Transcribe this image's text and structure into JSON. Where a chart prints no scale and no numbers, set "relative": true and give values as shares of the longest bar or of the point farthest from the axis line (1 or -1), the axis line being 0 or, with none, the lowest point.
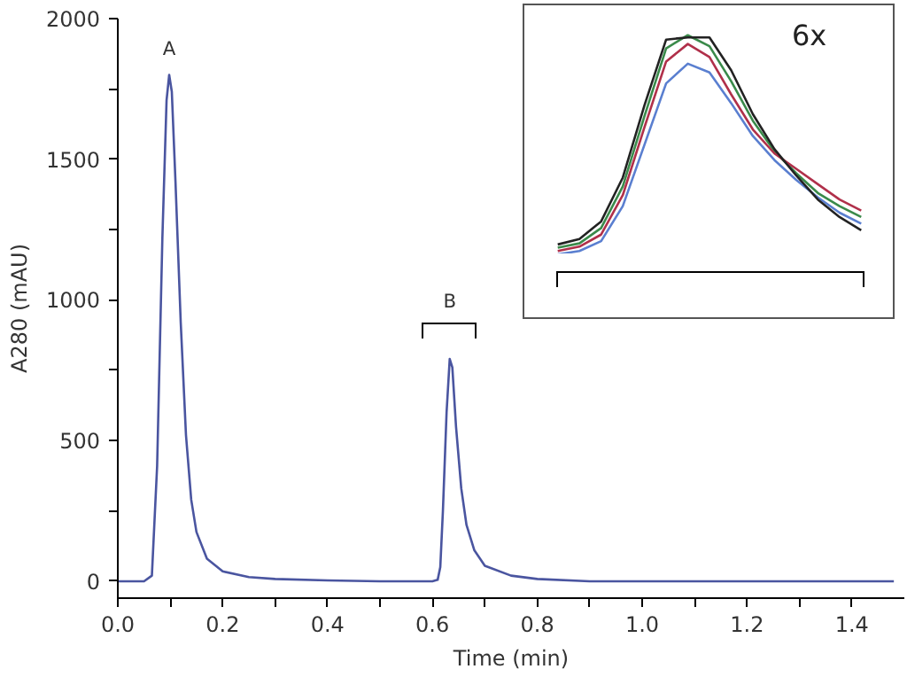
{
  "chart_data": [
    {
      "type": "line",
      "xlabel": "Time (min)",
      "ylabel": "A280 (mAU)",
      "x": [
        0,
        0.05,
        0.065,
        0.075,
        0.085,
        0.093,
        0.098,
        0.103,
        0.11,
        0.12,
        0.13,
        0.14,
        0.15,
        0.17,
        0.2,
        0.25,
        0.3,
        0.4,
        0.5,
        0.6,
        0.61,
        0.615,
        0.62,
        0.627,
        0.633,
        0.638,
        0.645,
        0.655,
        0.665,
        0.68,
        0.7,
        0.75,
        0.8,
        0.9,
        1.48
      ],
      "series": [
        {
          "color": "#4a55a0",
          "values": [
            0,
            0,
            20,
            410,
            1220,
            1710,
            1800,
            1740,
            1420,
            920,
            520,
            290,
            175,
            80,
            35,
            15,
            8,
            3,
            0,
            0,
            5,
            50,
            250,
            600,
            790,
            760,
            550,
            330,
            200,
            110,
            55,
            20,
            8,
            0,
            0
          ]
        }
      ],
      "xlim": [
        0,
        1.5
      ],
      "ylim": [
        -60,
        2000
      ],
      "xticks": [
        {
          "value": 0,
          "label": "0.0"
        },
        {
          "value": 0.1,
          "label": null
        },
        0.2,
        {
          "value": 0.3,
          "label": null
        },
        0.4,
        {
          "value": 0.5,
          "label": null
        },
        0.6,
        {
          "value": 0.7,
          "label": null
        },
        0.8,
        {
          "value": 0.9,
          "label": null
        },
        {
          "value": 1,
          "label": "1.0"
        },
        {
          "value": 1.1,
          "label": null
        },
        1.2,
        {
          "value": 1.3,
          "label": null
        },
        1.4
      ],
      "yticks": [
        0,
        {
          "value": 250,
          "label": null
        },
        500,
        {
          "value": 750,
          "label": null
        },
        1000,
        {
          "value": 1250,
          "label": null
        },
        1500,
        {
          "value": 1750,
          "label": null
        },
        2000
      ],
      "annotations": [
        "A",
        "B"
      ],
      "grid": false
    },
    {
      "type": "line",
      "relative": true,
      "categories": [
        null,
        null,
        null,
        null,
        null,
        null,
        null,
        null,
        null,
        null,
        null,
        null,
        null,
        null,
        null
      ],
      "series": [
        {
          "color": "#3a8a4a",
          "values": [
            0.03,
            0.05,
            0.12,
            0.31,
            0.63,
            0.94,
            1.0,
            0.95,
            0.79,
            0.61,
            0.47,
            0.37,
            0.28,
            0.22,
            0.17
          ]
        },
        {
          "color": "#b0304a",
          "values": [
            0.015,
            0.035,
            0.09,
            0.27,
            0.58,
            0.88,
            0.96,
            0.9,
            0.73,
            0.57,
            0.46,
            0.39,
            0.32,
            0.25,
            0.2
          ]
        },
        {
          "color": "#5a7fd0",
          "values": [
            0.0,
            0.015,
            0.06,
            0.22,
            0.5,
            0.78,
            0.87,
            0.83,
            0.69,
            0.54,
            0.43,
            0.34,
            0.26,
            0.19,
            0.14
          ]
        },
        {
          "color": "#222222",
          "values": [
            0.045,
            0.07,
            0.15,
            0.35,
            0.68,
            0.98,
            0.99,
            0.99,
            0.84,
            0.64,
            0.48,
            0.36,
            0.25,
            0.17,
            0.11
          ]
        }
      ],
      "annotations": [
        "6x"
      ]
    }
  ]
}
